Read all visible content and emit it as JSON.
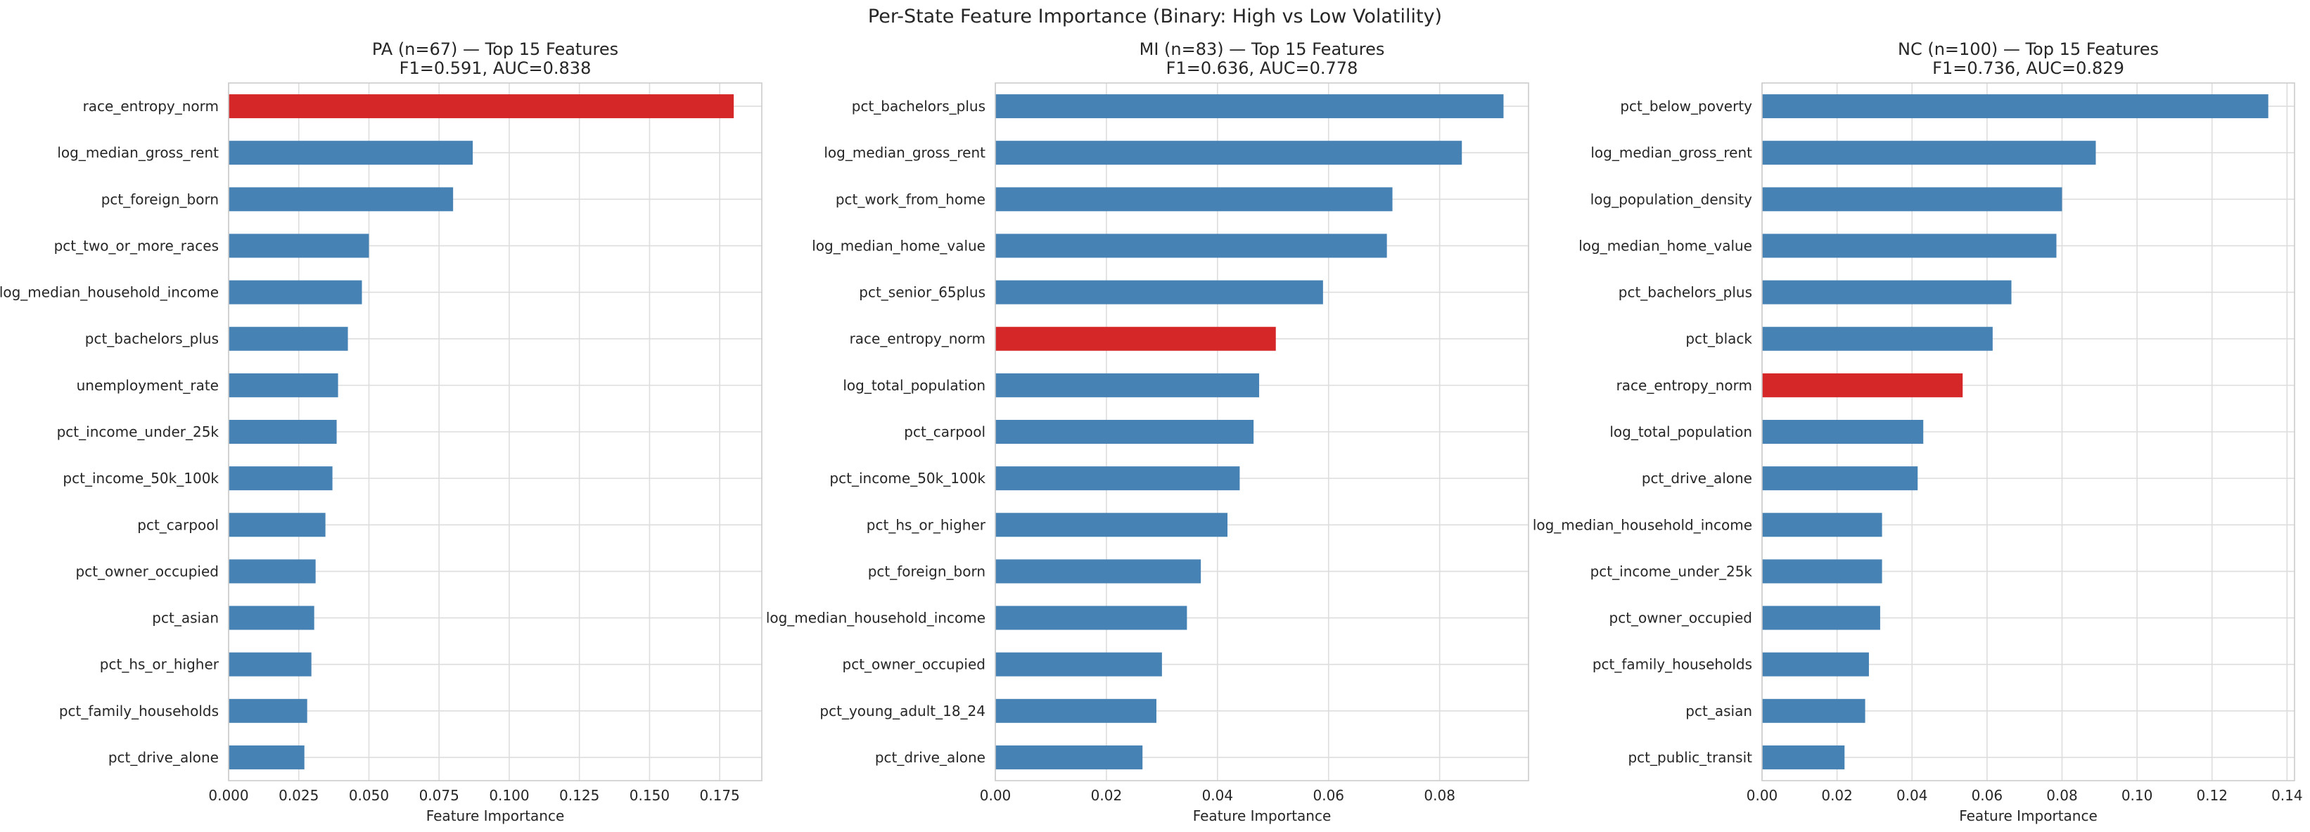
{
  "figure": {
    "suptitle": "Per-State Feature Importance (Binary: High vs Low Volatility)"
  },
  "colors": {
    "normal": "#4682b4",
    "highlight": "#d62728",
    "grid": "#dddddd",
    "spine": "#cccccc",
    "text": "#262626"
  },
  "chart_data": [
    {
      "type": "bar",
      "orientation": "horizontal",
      "title": "PA (n=67) — Top 15 Features",
      "subtitle": "F1=0.591, AUC=0.838",
      "xlabel": "Feature Importance",
      "xlim": [
        0,
        0.19
      ],
      "xticks": [
        0.0,
        0.025,
        0.05,
        0.075,
        0.1,
        0.125,
        0.15,
        0.175
      ],
      "xtick_labels": [
        "0.000",
        "0.025",
        "0.050",
        "0.075",
        "0.100",
        "0.125",
        "0.150",
        "0.175"
      ],
      "grid": true,
      "highlight": "race_entropy_norm",
      "categories": [
        "race_entropy_norm",
        "log_median_gross_rent",
        "pct_foreign_born",
        "pct_two_or_more_races",
        "log_median_household_income",
        "pct_bachelors_plus",
        "unemployment_rate",
        "pct_income_under_25k",
        "pct_income_50k_100k",
        "pct_carpool",
        "pct_owner_occupied",
        "pct_asian",
        "pct_hs_or_higher",
        "pct_family_households",
        "pct_drive_alone"
      ],
      "values": [
        0.18,
        0.087,
        0.08,
        0.05,
        0.0475,
        0.0425,
        0.039,
        0.0385,
        0.037,
        0.0345,
        0.031,
        0.0305,
        0.0295,
        0.028,
        0.027
      ]
    },
    {
      "type": "bar",
      "orientation": "horizontal",
      "title": "MI (n=83) — Top 15 Features",
      "subtitle": "F1=0.636, AUC=0.778",
      "xlabel": "Feature Importance",
      "xlim": [
        0,
        0.096
      ],
      "xticks": [
        0.0,
        0.02,
        0.04,
        0.06,
        0.08
      ],
      "xtick_labels": [
        "0.00",
        "0.02",
        "0.04",
        "0.06",
        "0.08"
      ],
      "grid": true,
      "highlight": "race_entropy_norm",
      "categories": [
        "pct_bachelors_plus",
        "log_median_gross_rent",
        "pct_work_from_home",
        "log_median_home_value",
        "pct_senior_65plus",
        "race_entropy_norm",
        "log_total_population",
        "pct_carpool",
        "pct_income_50k_100k",
        "pct_hs_or_higher",
        "pct_foreign_born",
        "log_median_household_income",
        "pct_owner_occupied",
        "pct_young_adult_18_24",
        "pct_drive_alone"
      ],
      "values": [
        0.0915,
        0.084,
        0.0715,
        0.0705,
        0.059,
        0.0505,
        0.0475,
        0.0465,
        0.044,
        0.0418,
        0.037,
        0.0345,
        0.03,
        0.029,
        0.0265
      ]
    },
    {
      "type": "bar",
      "orientation": "horizontal",
      "title": "NC (n=100) — Top 15 Features",
      "subtitle": "F1=0.736, AUC=0.829",
      "xlabel": "Feature Importance",
      "xlim": [
        0,
        0.142
      ],
      "xticks": [
        0.0,
        0.02,
        0.04,
        0.06,
        0.08,
        0.1,
        0.12,
        0.14
      ],
      "xtick_labels": [
        "0.00",
        "0.02",
        "0.04",
        "0.06",
        "0.08",
        "0.10",
        "0.12",
        "0.14"
      ],
      "grid": true,
      "highlight": "race_entropy_norm",
      "categories": [
        "pct_below_poverty",
        "log_median_gross_rent",
        "log_population_density",
        "log_median_home_value",
        "pct_bachelors_plus",
        "pct_black",
        "race_entropy_norm",
        "log_total_population",
        "pct_drive_alone",
        "log_median_household_income",
        "pct_income_under_25k",
        "pct_owner_occupied",
        "pct_family_households",
        "pct_asian",
        "pct_public_transit"
      ],
      "values": [
        0.135,
        0.089,
        0.08,
        0.0785,
        0.0665,
        0.0615,
        0.0535,
        0.043,
        0.0415,
        0.032,
        0.032,
        0.0315,
        0.0285,
        0.0275,
        0.022
      ]
    }
  ]
}
